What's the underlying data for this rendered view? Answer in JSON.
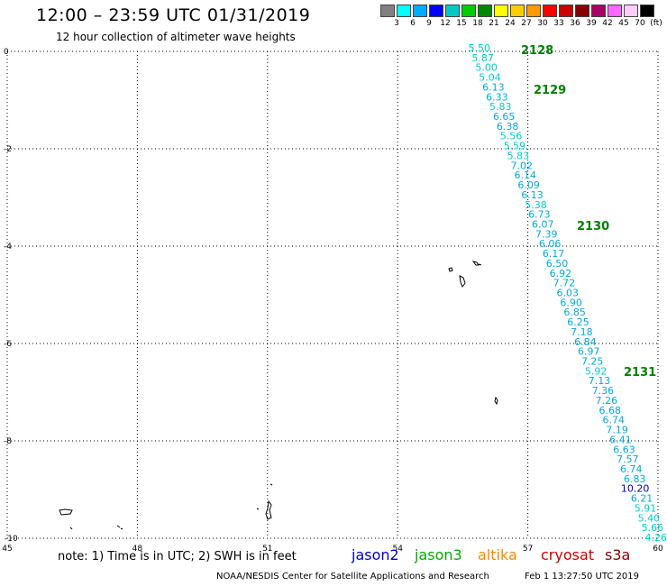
{
  "header": {
    "title": "12:00 – 23:59 UTC 01/31/2019",
    "subtitle": "12 hour collection of altimeter wave heights"
  },
  "legend": {
    "colors": [
      "#808080",
      "#00ffff",
      "#00aaff",
      "#0000ff",
      "#00c8c8",
      "#00cc00",
      "#008800",
      "#ffff00",
      "#ffcc00",
      "#ff9900",
      "#ff0000",
      "#cc0000",
      "#880000",
      "#aa0066",
      "#ff66ff",
      "#ffccff",
      "#000000"
    ],
    "labels": [
      "3",
      "6",
      "9",
      "12",
      "15",
      "18",
      "21",
      "24",
      "27",
      "30",
      "33",
      "36",
      "39",
      "42",
      "45",
      "70",
      "(ft)"
    ]
  },
  "axes": {
    "x_ticks": [
      "45",
      "48",
      "51",
      "54",
      "57",
      "60"
    ],
    "y_ticks": [
      "0",
      "-2",
      "-4",
      "-6",
      "-8",
      "-10"
    ]
  },
  "passes": [
    "2128",
    "2129",
    "2130",
    "2131"
  ],
  "measurements": [
    "5.50",
    "5.87",
    "5.00",
    "5.04",
    "6.13",
    "6.33",
    "5.83",
    "6.65",
    "6.38",
    "5.56",
    "5.59",
    "5.83",
    "7.02",
    "6.14",
    "6.09",
    "6.13",
    "5.38",
    "6.73",
    "6.07",
    "7.39",
    "6.06",
    "6.17",
    "6.50",
    "6.92",
    "7.72",
    "6.03",
    "6.90",
    "6.85",
    "6.25",
    "7.18",
    "6.84",
    "6.97",
    "7.25",
    "5.92",
    "7.13",
    "7.36",
    "7.26",
    "6.68",
    "6.74",
    "7.19",
    "6.41",
    "6.63",
    "7.57",
    "6.74",
    "6.83",
    "10.20",
    "6.21",
    "5.91",
    "5.40",
    "5.66",
    "4.26"
  ],
  "notes": {
    "text": "note:  1) Time is in UTC;  2) SWH is in feet"
  },
  "satellites": [
    {
      "name": "jason2",
      "color": "#0000cc"
    },
    {
      "name": "jason3",
      "color": "#00aa00"
    },
    {
      "name": "altika",
      "color": "#ff8800"
    },
    {
      "name": "cryosat",
      "color": "#cc0000"
    },
    {
      "name": "s3a",
      "color": "#880000"
    }
  ],
  "footer": {
    "credit": "NOAA/NESDIS Center for Satellite Applications and Research",
    "date": "Feb  1 13:27:50 UTC 2019"
  }
}
